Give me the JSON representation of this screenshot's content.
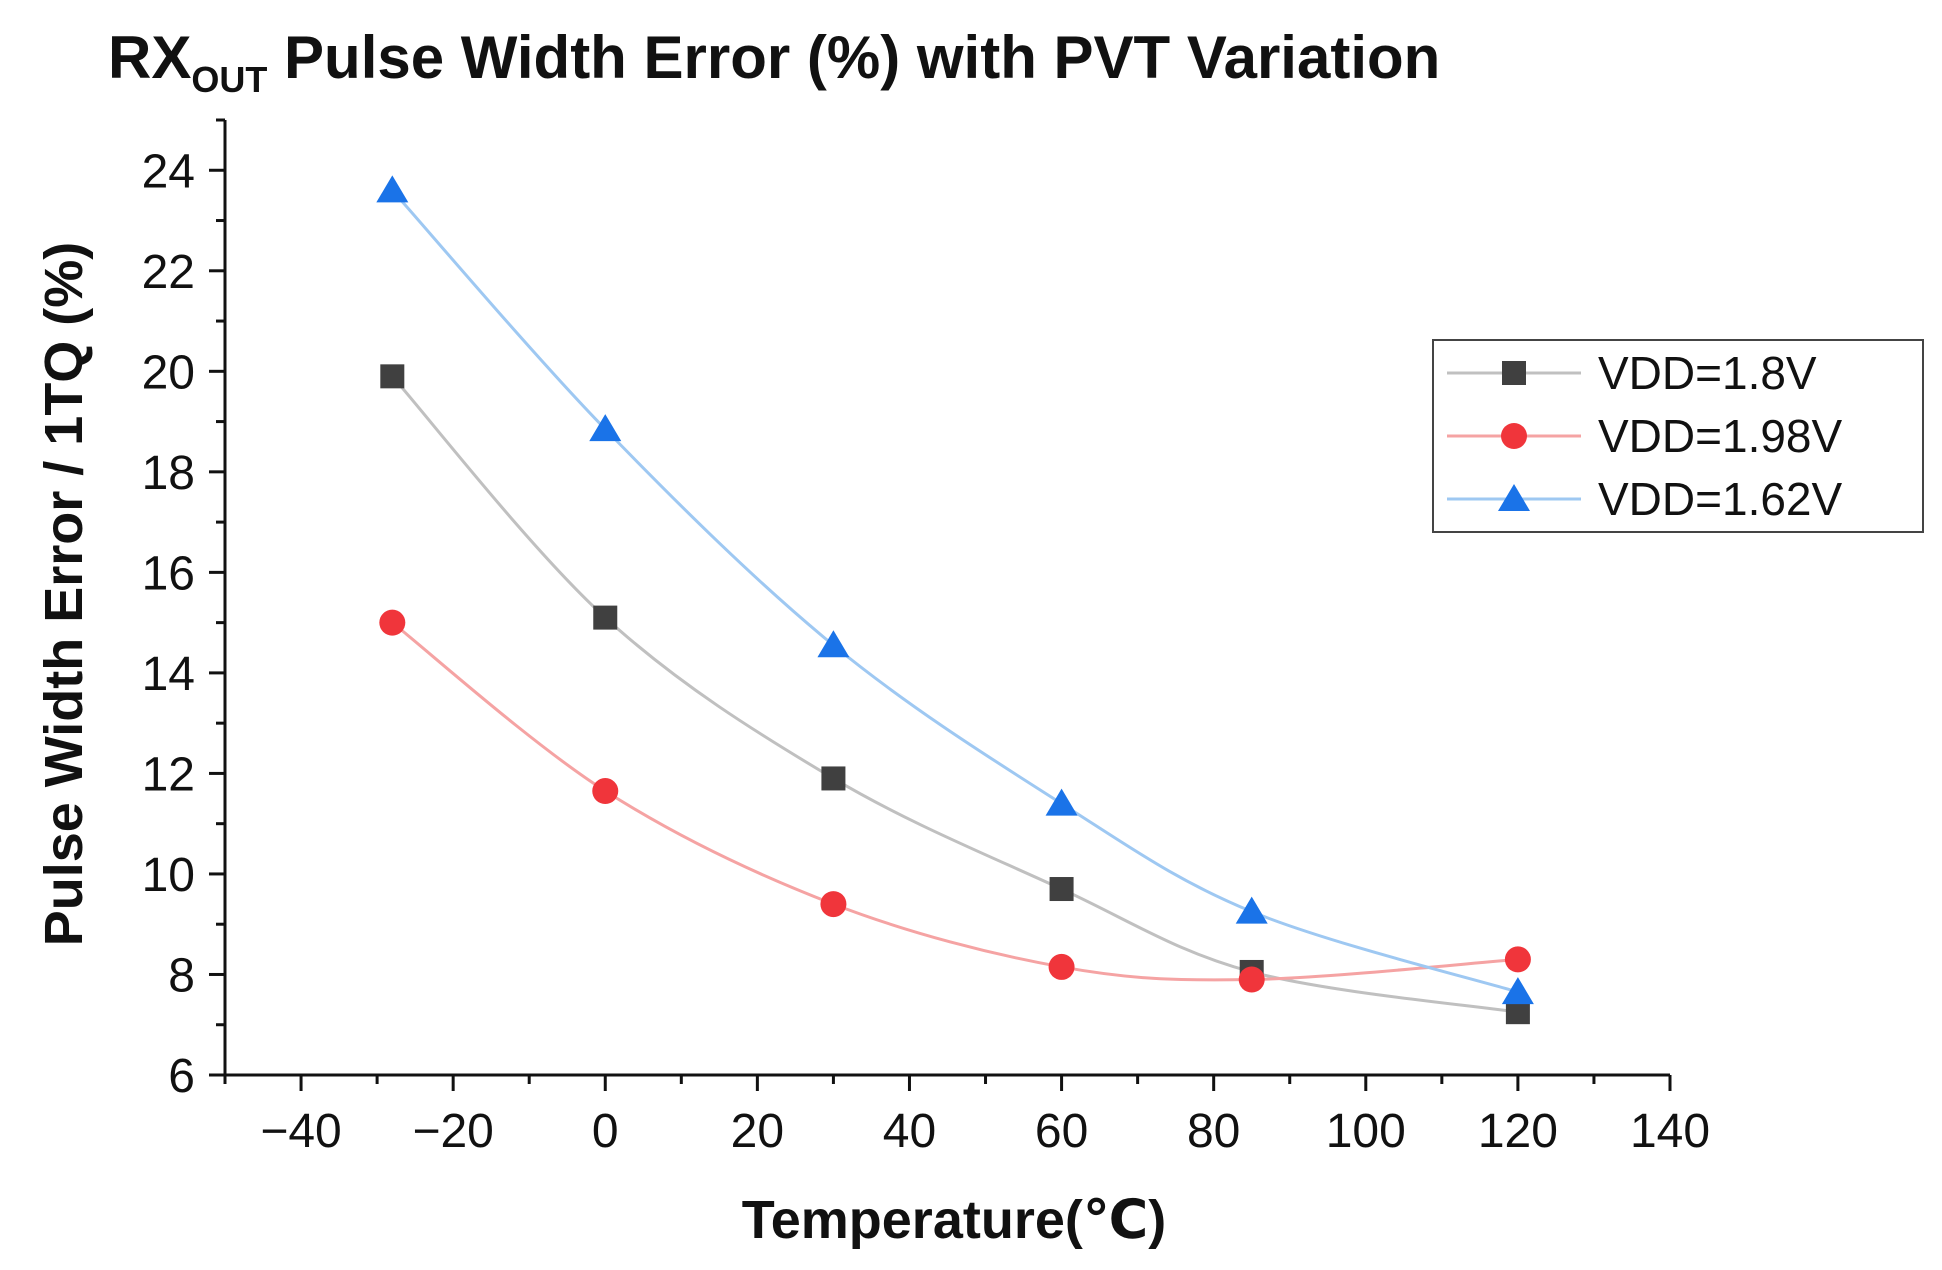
{
  "chart_data": {
    "type": "line",
    "title": {
      "prefix": "RX",
      "subscript": "OUT",
      "rest": " Pulse Width Error (%) with PVT Variation"
    },
    "xlabel": "Temperature(℃)",
    "ylabel": "Pulse Width Error / 1TQ (%)",
    "xlim": [
      -50,
      140
    ],
    "ylim": [
      6,
      25
    ],
    "xticks": [
      -40,
      -20,
      0,
      20,
      40,
      60,
      80,
      100,
      120,
      140
    ],
    "yticks": [
      6,
      8,
      10,
      12,
      14,
      16,
      18,
      20,
      22,
      24
    ],
    "xtick_labels": [
      "−40",
      "−20",
      "0",
      "20",
      "40",
      "60",
      "80",
      "100",
      "120",
      "140"
    ],
    "ytick_labels": [
      "6",
      "8",
      "10",
      "12",
      "14",
      "16",
      "18",
      "20",
      "22",
      "24"
    ],
    "legend_position": "right",
    "x": [
      -28,
      0,
      30,
      60,
      85,
      120
    ],
    "series": [
      {
        "name": "VDD=1.8V",
        "marker": "square",
        "marker_color": "#404040",
        "line_color": "#c0c0c0",
        "values": [
          19.9,
          15.1,
          11.9,
          9.7,
          8.05,
          7.25
        ]
      },
      {
        "name": "VDD=1.98V",
        "marker": "circle",
        "marker_color": "#f0353b",
        "line_color": "#f5a3a3",
        "values": [
          15.0,
          11.65,
          9.4,
          8.15,
          7.9,
          8.3
        ]
      },
      {
        "name": "VDD=1.62V",
        "marker": "triangle",
        "marker_color": "#1a73e8",
        "line_color": "#9ec8f2",
        "values": [
          23.6,
          18.85,
          14.55,
          11.4,
          9.25,
          7.65
        ]
      }
    ]
  }
}
